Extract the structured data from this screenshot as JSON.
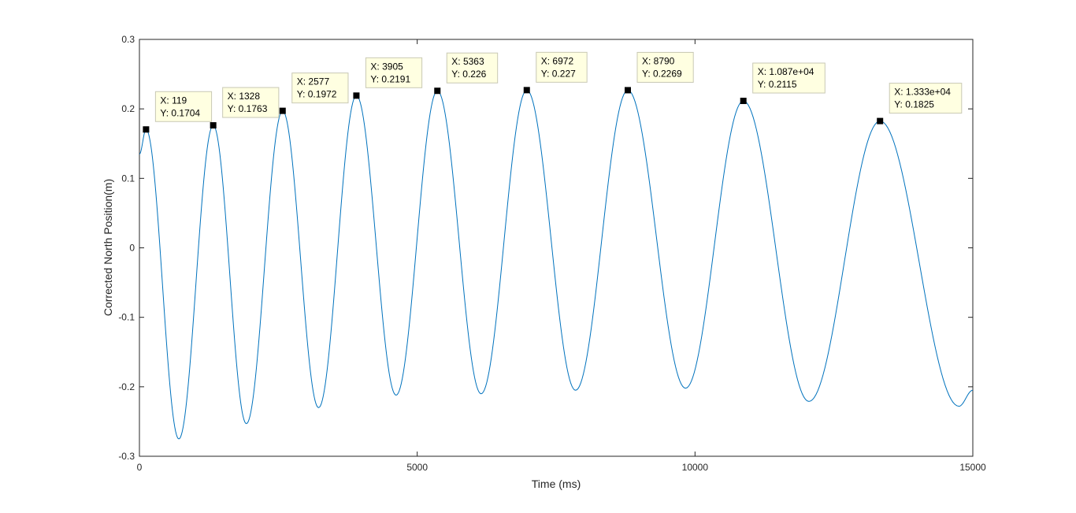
{
  "chart_data": {
    "type": "line",
    "title": "",
    "xlabel": "Time (ms)",
    "ylabel": "Corrected North Position(m)",
    "xlim": [
      0,
      15000
    ],
    "ylim": [
      -0.3,
      0.3
    ],
    "xticks": [
      0,
      5000,
      10000,
      15000
    ],
    "xtick_labels": [
      "0",
      "5000",
      "10000",
      "15000"
    ],
    "yticks": [
      -0.3,
      -0.2,
      -0.1,
      0,
      0.1,
      0.2,
      0.3
    ],
    "ytick_labels": [
      "-0.3",
      "-0.2",
      "-0.1",
      "0",
      "0.1",
      "0.2",
      "0.3"
    ],
    "grid": false,
    "line_color": "#0072BD",
    "series": [
      {
        "x": [
          0,
          119,
          710,
          1328,
          1925,
          2577,
          3225,
          3905,
          4620,
          5363,
          6150,
          6972,
          7850,
          8790,
          9830,
          10870,
          12050,
          13330,
          14750,
          15000
        ],
        "values": [
          0.135,
          0.1704,
          -0.275,
          0.1763,
          -0.253,
          0.1972,
          -0.23,
          0.2191,
          -0.212,
          0.226,
          -0.21,
          0.227,
          -0.205,
          0.2269,
          -0.202,
          0.2115,
          -0.221,
          0.1825,
          -0.228,
          -0.205
        ]
      }
    ],
    "datatips": [
      {
        "x": 119,
        "y": 0.1704,
        "x_label": "X: 119",
        "y_label": "Y: 0.1704"
      },
      {
        "x": 1328,
        "y": 0.1763,
        "x_label": "X: 1328",
        "y_label": "Y: 0.1763"
      },
      {
        "x": 2577,
        "y": 0.1972,
        "x_label": "X: 2577",
        "y_label": "Y: 0.1972"
      },
      {
        "x": 3905,
        "y": 0.2191,
        "x_label": "X: 3905",
        "y_label": "Y: 0.2191"
      },
      {
        "x": 5363,
        "y": 0.226,
        "x_label": "X: 5363",
        "y_label": "Y: 0.226"
      },
      {
        "x": 6972,
        "y": 0.227,
        "x_label": "X: 6972",
        "y_label": "Y: 0.227"
      },
      {
        "x": 8790,
        "y": 0.2269,
        "x_label": "X: 8790",
        "y_label": "Y: 0.2269"
      },
      {
        "x": 10870,
        "y": 0.2115,
        "x_label": "X: 1.087e+04",
        "y_label": "Y: 0.2115"
      },
      {
        "x": 13330,
        "y": 0.1825,
        "x_label": "X: 1.333e+04",
        "y_label": "Y: 0.1825"
      }
    ]
  }
}
